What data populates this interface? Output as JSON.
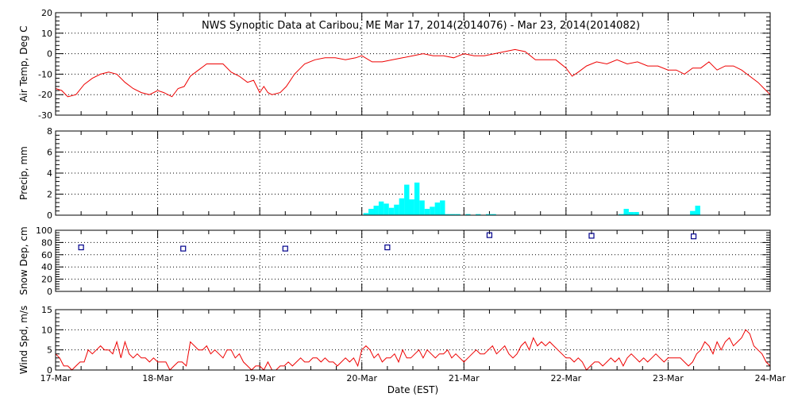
{
  "chart_data": {
    "type": "multi-panel",
    "title": "NWS Synoptic Data at Caribou, ME   Mar 17, 2014(2014076) - Mar 23, 2014(2014082)",
    "xlabel": "Date (EST)",
    "x_range": [
      "17-Mar",
      "24-Mar"
    ],
    "x_tick_labels": [
      "17-Mar",
      "18-Mar",
      "19-Mar",
      "20-Mar",
      "21-Mar",
      "22-Mar",
      "23-Mar",
      "24-Mar"
    ],
    "grid": true,
    "colors": {
      "temp": "#ee0000",
      "precip": "#00ffff",
      "snow": "#00008b",
      "wind": "#ee0000"
    },
    "panels": [
      {
        "type": "line",
        "ylabel": "Air Temp, Deg C",
        "ylim": [
          -30,
          20
        ],
        "yticks": [
          -30,
          -20,
          -10,
          0,
          10,
          20
        ],
        "series_name": "Air Temp",
        "x_days": [
          0,
          0.06,
          0.12,
          0.2,
          0.28,
          0.36,
          0.44,
          0.52,
          0.6,
          0.68,
          0.76,
          0.84,
          0.92,
          1.0,
          1.06,
          1.14,
          1.2,
          1.26,
          1.32,
          1.4,
          1.48,
          1.56,
          1.64,
          1.72,
          1.8,
          1.88,
          1.94,
          2.0,
          2.04,
          2.08,
          2.12,
          2.2,
          2.26,
          2.34,
          2.44,
          2.54,
          2.64,
          2.74,
          2.84,
          2.94,
          3.0,
          3.1,
          3.2,
          3.3,
          3.4,
          3.5,
          3.6,
          3.7,
          3.8,
          3.9,
          4.0,
          4.1,
          4.2,
          4.3,
          4.4,
          4.5,
          4.6,
          4.7,
          4.8,
          4.9,
          5.0,
          5.06,
          5.12,
          5.2,
          5.3,
          5.4,
          5.5,
          5.6,
          5.7,
          5.8,
          5.9,
          6.0,
          6.08,
          6.16,
          6.24,
          6.32,
          6.4,
          6.48,
          6.56,
          6.64,
          6.72,
          6.8,
          6.88,
          6.94,
          7.0
        ],
        "values": [
          -17,
          -18,
          -21,
          -20,
          -15,
          -12,
          -10,
          -9,
          -10,
          -14,
          -17,
          -19,
          -20,
          -18,
          -19,
          -21,
          -17,
          -16,
          -11,
          -8,
          -5,
          -5,
          -5,
          -9,
          -11,
          -14,
          -13,
          -19,
          -16,
          -19,
          -20,
          -19,
          -16,
          -10,
          -5,
          -3,
          -2,
          -2,
          -3,
          -2,
          -1,
          -4,
          -4,
          -3,
          -2,
          -1,
          0,
          -1,
          -1,
          -2,
          0,
          -1,
          -1,
          0,
          1,
          2,
          1,
          -3,
          -3,
          -3,
          -7,
          -11,
          -9,
          -6,
          -4,
          -5,
          -3,
          -5,
          -4,
          -6,
          -6,
          -8,
          -8,
          -10,
          -7,
          -7,
          -4,
          -8,
          -6,
          -6,
          -8,
          -11,
          -14,
          -17,
          -20
        ]
      },
      {
        "type": "bar",
        "ylabel": "Precip, mm",
        "ylim": [
          0,
          8
        ],
        "yticks": [
          0,
          2,
          4,
          6,
          8
        ],
        "series_name": "Precip",
        "x_days": [
          3.04,
          3.09,
          3.14,
          3.19,
          3.24,
          3.29,
          3.34,
          3.39,
          3.44,
          3.49,
          3.54,
          3.59,
          3.64,
          3.69,
          3.74,
          3.79,
          3.84,
          3.89,
          3.94,
          4.04,
          4.14,
          4.24,
          4.29,
          5.54,
          5.59,
          5.64,
          5.69,
          6.24,
          6.29
        ],
        "values": [
          0.2,
          0.6,
          0.9,
          1.3,
          1.1,
          0.7,
          1.0,
          1.6,
          2.9,
          1.5,
          3.1,
          1.4,
          0.6,
          0.8,
          1.2,
          1.4,
          0.1,
          0.1,
          0.1,
          0.1,
          0.1,
          0.1,
          0.1,
          0.1,
          0.6,
          0.3,
          0.3,
          0.4,
          0.9
        ]
      },
      {
        "type": "scatter",
        "ylabel": "Snow Dep, cm",
        "ylim": [
          0,
          100
        ],
        "yticks": [
          0,
          20,
          40,
          60,
          80,
          100
        ],
        "series_name": "Snow Depth",
        "x_days": [
          0.25,
          1.25,
          2.25,
          3.25,
          4.25,
          5.25,
          6.25
        ],
        "values": [
          72,
          70,
          70,
          72,
          92,
          91,
          90
        ]
      },
      {
        "type": "line",
        "ylabel": "Wind Spd, m/s",
        "ylim": [
          0,
          15
        ],
        "yticks": [
          0,
          5,
          10,
          15
        ],
        "series_name": "Wind Speed",
        "x_days": [
          0,
          0.04,
          0.08,
          0.12,
          0.16,
          0.2,
          0.24,
          0.28,
          0.32,
          0.36,
          0.4,
          0.44,
          0.48,
          0.52,
          0.56,
          0.6,
          0.64,
          0.68,
          0.72,
          0.76,
          0.8,
          0.84,
          0.88,
          0.92,
          0.96,
          1.0,
          1.04,
          1.08,
          1.12,
          1.16,
          1.2,
          1.24,
          1.28,
          1.32,
          1.36,
          1.4,
          1.44,
          1.48,
          1.52,
          1.56,
          1.6,
          1.64,
          1.68,
          1.72,
          1.76,
          1.8,
          1.84,
          1.88,
          1.92,
          1.96,
          2.0,
          2.04,
          2.08,
          2.12,
          2.16,
          2.2,
          2.24,
          2.28,
          2.32,
          2.36,
          2.4,
          2.44,
          2.48,
          2.52,
          2.56,
          2.6,
          2.64,
          2.68,
          2.72,
          2.76,
          2.8,
          2.84,
          2.88,
          2.92,
          2.96,
          3.0,
          3.04,
          3.08,
          3.12,
          3.16,
          3.2,
          3.24,
          3.28,
          3.32,
          3.36,
          3.4,
          3.44,
          3.48,
          3.52,
          3.56,
          3.6,
          3.64,
          3.68,
          3.72,
          3.76,
          3.8,
          3.84,
          3.88,
          3.92,
          3.96,
          4.0,
          4.04,
          4.08,
          4.12,
          4.16,
          4.2,
          4.24,
          4.28,
          4.32,
          4.36,
          4.4,
          4.44,
          4.48,
          4.52,
          4.56,
          4.6,
          4.64,
          4.68,
          4.72,
          4.76,
          4.8,
          4.84,
          4.88,
          4.92,
          4.96,
          5.0,
          5.04,
          5.08,
          5.12,
          5.16,
          5.2,
          5.24,
          5.28,
          5.32,
          5.36,
          5.4,
          5.44,
          5.48,
          5.52,
          5.56,
          5.6,
          5.64,
          5.68,
          5.72,
          5.76,
          5.8,
          5.84,
          5.88,
          5.92,
          5.96,
          6.0,
          6.04,
          6.08,
          6.12,
          6.16,
          6.2,
          6.24,
          6.28,
          6.32,
          6.36,
          6.4,
          6.44,
          6.48,
          6.52,
          6.56,
          6.6,
          6.64,
          6.68,
          6.72,
          6.76,
          6.8,
          6.84,
          6.88,
          6.92,
          6.96,
          7.0
        ],
        "values": [
          4,
          3,
          1,
          1,
          0,
          1,
          2,
          2,
          5,
          4,
          5,
          6,
          5,
          5,
          4,
          7,
          3,
          7,
          4,
          3,
          4,
          3,
          3,
          2,
          3,
          2,
          2,
          2,
          0,
          1,
          2,
          2,
          1,
          7,
          6,
          5,
          5,
          6,
          4,
          5,
          4,
          3,
          5,
          5,
          3,
          4,
          2,
          1,
          0,
          1,
          1,
          0,
          2,
          0,
          0,
          1,
          1,
          2,
          1,
          2,
          3,
          2,
          2,
          3,
          3,
          2,
          3,
          2,
          2,
          1,
          2,
          3,
          2,
          3,
          1,
          5,
          6,
          5,
          3,
          4,
          2,
          3,
          3,
          4,
          2,
          5,
          3,
          3,
          4,
          5,
          3,
          5,
          4,
          3,
          4,
          4,
          5,
          3,
          4,
          3,
          2,
          3,
          4,
          5,
          4,
          4,
          5,
          6,
          4,
          5,
          6,
          4,
          3,
          4,
          6,
          7,
          5,
          8,
          6,
          7,
          6,
          7,
          6,
          5,
          4,
          3,
          3,
          2,
          3,
          2,
          0,
          1,
          2,
          2,
          1,
          2,
          3,
          2,
          3,
          1,
          3,
          4,
          3,
          2,
          3,
          2,
          3,
          4,
          3,
          2,
          3,
          3,
          3,
          3,
          2,
          1,
          2,
          4,
          5,
          7,
          6,
          4,
          7,
          5,
          7,
          8,
          6,
          7,
          8,
          10,
          9,
          6,
          5,
          4,
          2,
          1
        ]
      }
    ]
  }
}
